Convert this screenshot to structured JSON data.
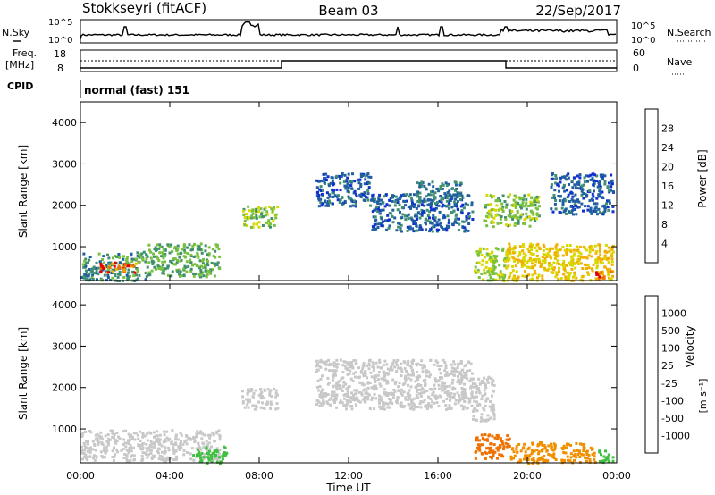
{
  "header": {
    "station": "Stokkseyri (fitACF)",
    "beam": "Beam 03",
    "date": "22/Sep/2017"
  },
  "top_panel": {
    "nsky_label": "N.Sky",
    "nsearch_label": "N.Search",
    "freq_label_1": "Freq.",
    "freq_label_2": "[MHz]",
    "nave_label": "Nave",
    "cpid_label": "CPID",
    "cpid_text": "normal (fast) 151",
    "noise_ticks": [
      "10^5",
      "10^0"
    ],
    "freq_ticks": [
      "18",
      "8"
    ],
    "nave_ticks": [
      "60",
      "0"
    ]
  },
  "x_axis": {
    "label": "Time UT",
    "ticks": [
      "00:00",
      "04:00",
      "08:00",
      "12:00",
      "16:00",
      "20:00",
      "00:00"
    ]
  },
  "colorbars": {
    "power": {
      "label": "Power [dB]",
      "ticks": [
        "28",
        "24",
        "20",
        "16",
        "12",
        "8",
        "4"
      ],
      "colors": [
        "#e00000",
        "#f07000",
        "#f0b000",
        "#d8d800",
        "#78c040",
        "#409070",
        "#2060a0",
        "#1030d0"
      ]
    },
    "velocity": {
      "label": "Velocity",
      "unit": "[m s⁻¹]",
      "ticks": [
        "1000",
        "500",
        "100",
        "25",
        "-25",
        "-100",
        "-500",
        "-1000"
      ],
      "colors": [
        "#2040c0",
        "#208040",
        "#40c040",
        "#c8c8c8",
        "#c8c8c8",
        "#f0c000",
        "#f07000",
        "#e03000",
        "#e00000"
      ]
    }
  },
  "chart_data": [
    {
      "type": "heatmap",
      "title": "Power",
      "ylabel": "Slant Range [km]",
      "xlabel": "",
      "x_range_hours": [
        0,
        24
      ],
      "ylim_km": [
        180,
        4500
      ],
      "y_ticks": [
        "1000",
        "2000",
        "3000",
        "4000"
      ],
      "clim_db": [
        0,
        32
      ],
      "regions": [
        {
          "t0": 0.0,
          "t1": 3.0,
          "r0": 200,
          "r1": 900,
          "val": 10
        },
        {
          "t0": 0.8,
          "t1": 2.5,
          "r0": 400,
          "r1": 650,
          "val": 26
        },
        {
          "t0": 3.0,
          "t1": 6.2,
          "r0": 300,
          "r1": 1100,
          "val": 12
        },
        {
          "t0": 7.2,
          "t1": 8.8,
          "r0": 1500,
          "r1": 2000,
          "val": 14
        },
        {
          "t0": 10.5,
          "t1": 13.0,
          "r0": 2000,
          "r1": 2800,
          "val": 6
        },
        {
          "t0": 13.0,
          "t1": 17.5,
          "r0": 1400,
          "r1": 2300,
          "val": 6
        },
        {
          "t0": 15.0,
          "t1": 17.0,
          "r0": 2100,
          "r1": 2600,
          "val": 8
        },
        {
          "t0": 17.6,
          "t1": 19.0,
          "r0": 200,
          "r1": 1000,
          "val": 16
        },
        {
          "t0": 19.0,
          "t1": 23.8,
          "r0": 200,
          "r1": 1100,
          "val": 20
        },
        {
          "t0": 23.0,
          "t1": 23.8,
          "r0": 250,
          "r1": 450,
          "val": 28
        },
        {
          "t0": 18.0,
          "t1": 20.5,
          "r0": 1500,
          "r1": 2300,
          "val": 14
        },
        {
          "t0": 21.0,
          "t1": 23.8,
          "r0": 1800,
          "r1": 2800,
          "val": 6
        }
      ]
    },
    {
      "type": "heatmap",
      "title": "Velocity",
      "ylabel": "Slant Range [km]",
      "xlabel": "Time UT",
      "x_range_hours": [
        0,
        24
      ],
      "ylim_km": [
        180,
        4500
      ],
      "y_ticks": [
        "1000",
        "2000",
        "3000",
        "4000"
      ],
      "clim_ms": [
        -1000,
        1000
      ],
      "regions": [
        {
          "t0": 0.0,
          "t1": 6.2,
          "r0": 250,
          "r1": 1000,
          "val": 0
        },
        {
          "t0": 5.0,
          "t1": 6.5,
          "r0": 200,
          "r1": 600,
          "val": 150
        },
        {
          "t0": 7.2,
          "t1": 8.8,
          "r0": 1500,
          "r1": 2000,
          "val": 0
        },
        {
          "t0": 10.5,
          "t1": 17.5,
          "r0": 1500,
          "r1": 2700,
          "val": 0
        },
        {
          "t0": 17.5,
          "t1": 18.5,
          "r0": 1200,
          "r1": 2300,
          "val": 0
        },
        {
          "t0": 17.6,
          "t1": 19.2,
          "r0": 300,
          "r1": 900,
          "val": -400
        },
        {
          "t0": 19.2,
          "t1": 23.0,
          "r0": 200,
          "r1": 700,
          "val": -300
        },
        {
          "t0": 23.0,
          "t1": 23.8,
          "r0": 200,
          "r1": 500,
          "val": 200
        }
      ]
    }
  ]
}
